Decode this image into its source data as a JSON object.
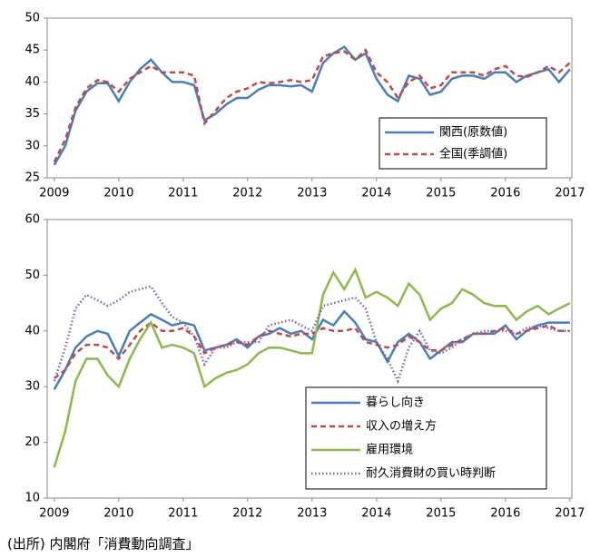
{
  "chart_data": [
    {
      "type": "line",
      "legend": "lower right",
      "grid": false,
      "x": [
        2009,
        2009.17,
        2009.33,
        2009.5,
        2009.67,
        2009.83,
        2010,
        2010.17,
        2010.33,
        2010.5,
        2010.67,
        2010.83,
        2011,
        2011.17,
        2011.33,
        2011.5,
        2011.67,
        2011.83,
        2012,
        2012.17,
        2012.33,
        2012.5,
        2012.67,
        2012.83,
        2013,
        2013.17,
        2013.33,
        2013.5,
        2013.67,
        2013.83,
        2014,
        2014.17,
        2014.33,
        2014.5,
        2014.67,
        2014.83,
        2015,
        2015.17,
        2015.33,
        2015.5,
        2015.67,
        2015.83,
        2016,
        2016.17,
        2016.33,
        2016.5,
        2016.67,
        2016.83,
        2017
      ],
      "xlim": [
        2008.89,
        2017.03
      ],
      "xticks": [
        2009,
        2010,
        2011,
        2012,
        2013,
        2014,
        2015,
        2016,
        2017
      ],
      "ylim": [
        25,
        50
      ],
      "yticks": [
        25,
        30,
        35,
        40,
        45,
        50
      ],
      "series": [
        {
          "name": "関西(原数値)",
          "color": "#4a7ebb",
          "style": "solid",
          "values": [
            27,
            30,
            35.5,
            38.5,
            39.8,
            39.8,
            37,
            40,
            42,
            43.5,
            41.5,
            40,
            40,
            39.5,
            34,
            35,
            36.5,
            37.5,
            37.5,
            38.8,
            39.5,
            39.5,
            39.3,
            39.5,
            38.5,
            43,
            44.5,
            45.5,
            43.5,
            44.5,
            40.5,
            38,
            37,
            41,
            40.5,
            38,
            38.5,
            40.5,
            41,
            41,
            40.5,
            41.5,
            41.5,
            40,
            41,
            41.5,
            42,
            40,
            42
          ]
        },
        {
          "name": "全国(季調値)",
          "color": "#be4b48",
          "style": "dashed",
          "values": [
            27.5,
            31,
            36,
            39,
            40.3,
            40,
            38.5,
            40.5,
            41.5,
            42.5,
            41.5,
            41.5,
            41.5,
            41,
            33.5,
            35.5,
            37.5,
            38.5,
            39,
            40,
            39.8,
            40,
            40.3,
            40,
            40.3,
            44,
            44.5,
            44.8,
            43.5,
            45,
            41.5,
            40,
            37.5,
            40,
            41,
            39,
            39.5,
            41.5,
            41.5,
            41.5,
            41,
            42,
            42.5,
            41,
            40.8,
            41.5,
            42.5,
            41.5,
            43
          ]
        }
      ]
    },
    {
      "type": "line",
      "legend": "lower right",
      "grid": false,
      "x": [
        2009,
        2009.17,
        2009.33,
        2009.5,
        2009.67,
        2009.83,
        2010,
        2010.17,
        2010.33,
        2010.5,
        2010.67,
        2010.83,
        2011,
        2011.17,
        2011.33,
        2011.5,
        2011.67,
        2011.83,
        2012,
        2012.17,
        2012.33,
        2012.5,
        2012.67,
        2012.83,
        2013,
        2013.17,
        2013.33,
        2013.5,
        2013.67,
        2013.83,
        2014,
        2014.17,
        2014.33,
        2014.5,
        2014.67,
        2014.83,
        2015,
        2015.17,
        2015.33,
        2015.5,
        2015.67,
        2015.83,
        2016,
        2016.17,
        2016.33,
        2016.5,
        2016.67,
        2016.83,
        2017
      ],
      "xlim": [
        2008.89,
        2017.03
      ],
      "xticks": [
        2009,
        2010,
        2011,
        2012,
        2013,
        2014,
        2015,
        2016,
        2017
      ],
      "ylim": [
        10,
        60
      ],
      "yticks": [
        10,
        20,
        30,
        40,
        50,
        60
      ],
      "series": [
        {
          "name": "暮らし向き",
          "color": "#4a7ebb",
          "style": "solid",
          "values": [
            29.5,
            33,
            37,
            39,
            40,
            39.5,
            35.5,
            40,
            41.5,
            43,
            42,
            41,
            41.5,
            41,
            36.5,
            37,
            37.5,
            38.5,
            37,
            39,
            39.5,
            40.5,
            39.5,
            40,
            38.5,
            42,
            41,
            43.5,
            41.5,
            38.5,
            38,
            34.5,
            38,
            39.5,
            38,
            35,
            36.5,
            38,
            38,
            39.5,
            39.5,
            39.5,
            41,
            38.5,
            40,
            41,
            41.5,
            41.5,
            41.5
          ]
        },
        {
          "name": "収入の増え方",
          "color": "#be4b48",
          "style": "dashed",
          "values": [
            31.5,
            33,
            36,
            37.5,
            37.5,
            37,
            35,
            37.5,
            40,
            41.5,
            40,
            40,
            40.5,
            39,
            36,
            37,
            37.5,
            38,
            37.5,
            39,
            40,
            39.5,
            39,
            39.5,
            39.5,
            40.5,
            40,
            40,
            40.5,
            38,
            37.5,
            37,
            37.5,
            39,
            38,
            36.5,
            36.5,
            37.5,
            38.5,
            39.5,
            39.5,
            40,
            40.5,
            39.5,
            40,
            40.5,
            41,
            40,
            40
          ]
        },
        {
          "name": "雇用環境",
          "color": "#8cb84c",
          "style": "solid",
          "values": [
            15.5,
            22,
            31,
            35,
            35,
            32,
            30,
            35,
            38.5,
            41.5,
            37,
            37.5,
            37,
            36,
            30,
            31.5,
            32.5,
            33,
            34,
            36,
            37,
            37,
            36.5,
            36,
            36,
            46.5,
            50.5,
            47.5,
            51,
            46,
            47,
            46,
            44.5,
            48.5,
            46.5,
            42,
            44,
            45,
            47.5,
            46.5,
            45,
            44.5,
            44.5,
            42,
            43.5,
            44.5,
            43,
            44,
            45
          ]
        },
        {
          "name": "耐久消費財の買い時判断",
          "color": "#7d64a0",
          "style": "dotted",
          "values": [
            31,
            37,
            44,
            46.5,
            45.5,
            44.5,
            45.5,
            47,
            47.5,
            48,
            45,
            42.5,
            41.5,
            39,
            34,
            37,
            37,
            38,
            38,
            38,
            41,
            41.5,
            42,
            41,
            40,
            44.5,
            45,
            45.5,
            46,
            44,
            38,
            35,
            31,
            37,
            40,
            36.5,
            36,
            37,
            38.5,
            39.5,
            40,
            40,
            40,
            39.5,
            40.5,
            41,
            40.5,
            40,
            40
          ]
        }
      ]
    }
  ],
  "source": "(出所) 内閣府「消費動向調査」"
}
